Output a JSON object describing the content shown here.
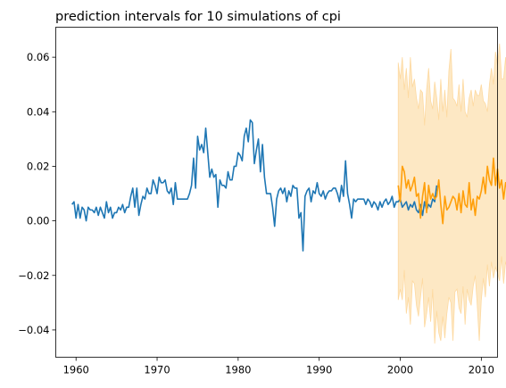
{
  "chart_data": {
    "type": "line",
    "title": "prediction intervals for 10 simulations of cpi",
    "xlabel": "",
    "ylabel": "",
    "xlim": [
      1957.5,
      2012.0
    ],
    "ylim": [
      -0.05,
      0.071
    ],
    "x_ticks": [
      1960,
      1970,
      1980,
      1990,
      2000,
      2010
    ],
    "y_ticks": [
      -0.04,
      -0.02,
      0.0,
      0.02,
      0.04,
      0.06
    ],
    "y_tick_labels": [
      "−0.04",
      "−0.02",
      "0.00",
      "0.02",
      "0.04",
      "0.06"
    ],
    "grid": false,
    "colors": {
      "observed": "#1f77b4",
      "forecast": "#ff9f0a",
      "band": "#fde8c4",
      "band_edge": "#fdd9a0"
    },
    "series": [
      {
        "key": "observed",
        "x_start": 1959.5,
        "step": 0.25,
        "values": [
          0.006,
          0.007,
          0.001,
          0.006,
          0.001,
          0.005,
          0.004,
          0.0,
          0.005,
          0.004,
          0.004,
          0.003,
          0.005,
          0.002,
          0.005,
          0.003,
          0.001,
          0.007,
          0.003,
          0.005,
          0.001,
          0.003,
          0.003,
          0.005,
          0.004,
          0.006,
          0.003,
          0.005,
          0.005,
          0.009,
          0.012,
          0.005,
          0.012,
          0.002,
          0.006,
          0.009,
          0.008,
          0.012,
          0.01,
          0.01,
          0.015,
          0.013,
          0.01,
          0.016,
          0.014,
          0.014,
          0.015,
          0.011,
          0.01,
          0.012,
          0.006,
          0.014,
          0.008,
          0.008,
          0.008,
          0.008,
          0.008,
          0.008,
          0.01,
          0.013,
          0.023,
          0.012,
          0.031,
          0.026,
          0.028,
          0.025,
          0.034,
          0.025,
          0.016,
          0.019,
          0.016,
          0.017,
          0.005,
          0.015,
          0.013,
          0.013,
          0.012,
          0.018,
          0.015,
          0.015,
          0.02,
          0.02,
          0.025,
          0.024,
          0.022,
          0.031,
          0.034,
          0.029,
          0.037,
          0.036,
          0.021,
          0.026,
          0.03,
          0.018,
          0.028,
          0.016,
          0.01,
          0.01,
          0.01,
          0.005,
          -0.002,
          0.008,
          0.011,
          0.012,
          0.01,
          0.012,
          0.007,
          0.011,
          0.009,
          0.013,
          0.012,
          0.012,
          0.001,
          0.003,
          -0.011,
          0.009,
          0.011,
          0.012,
          0.007,
          0.011,
          0.01,
          0.014,
          0.01,
          0.009,
          0.011,
          0.008,
          0.01,
          0.011,
          0.011,
          0.012,
          0.012,
          0.01,
          0.007,
          0.013,
          0.009,
          0.022,
          0.01,
          0.006,
          0.001,
          0.008,
          0.007,
          0.008,
          0.008,
          0.008,
          0.008,
          0.006,
          0.008,
          0.007,
          0.005,
          0.007,
          0.006,
          0.004,
          0.007,
          0.005,
          0.007,
          0.008,
          0.006,
          0.007,
          0.009,
          0.005,
          0.007,
          0.007,
          0.008,
          0.005,
          0.006,
          0.007,
          0.004,
          0.006,
          0.005,
          0.007,
          0.004,
          0.003,
          0.006,
          0.002,
          0.007,
          0.004,
          0.006,
          0.005,
          0.008,
          0.007,
          0.013
        ]
      },
      {
        "key": "forecast",
        "x_start": 1999.75,
        "step": 0.25,
        "values": [
          0.013,
          0.007,
          0.02,
          0.018,
          0.012,
          0.015,
          0.011,
          0.013,
          0.016,
          0.009,
          0.01,
          0.001,
          0.009,
          0.014,
          0.003,
          0.013,
          0.008,
          0.01,
          0.008,
          0.009,
          0.015,
          0.006,
          -0.001,
          0.009,
          0.004,
          0.005,
          0.007,
          0.009,
          0.008,
          0.004,
          0.01,
          0.003,
          0.011,
          0.006,
          0.005,
          0.014,
          0.004,
          0.008,
          0.002,
          0.009,
          0.008,
          0.011,
          0.016,
          0.01,
          0.02,
          0.015,
          0.013,
          0.023,
          0.013,
          0.019,
          0.012,
          0.015,
          0.008,
          0.014,
          0.011,
          0.011,
          0.017,
          0.008,
          0.009,
          0.018,
          0.015
        ]
      }
    ],
    "interval": {
      "x_start": 1999.75,
      "step": 0.25,
      "upper": [
        0.058,
        0.052,
        0.06,
        0.048,
        0.056,
        0.045,
        0.06,
        0.049,
        0.052,
        0.045,
        0.041,
        0.048,
        0.047,
        0.035,
        0.048,
        0.056,
        0.044,
        0.041,
        0.051,
        0.045,
        0.037,
        0.052,
        0.04,
        0.048,
        0.038,
        0.055,
        0.063,
        0.045,
        0.044,
        0.042,
        0.05,
        0.04,
        0.052,
        0.04,
        0.038,
        0.045,
        0.048,
        0.042,
        0.048,
        0.046,
        0.046,
        0.05,
        0.044,
        0.043,
        0.04,
        0.05,
        0.056,
        0.05,
        0.062,
        0.057,
        0.065,
        0.052,
        0.052,
        0.06,
        0.048,
        0.047,
        0.052,
        0.053,
        0.04,
        0.057,
        0.058
      ],
      "lower": [
        -0.029,
        -0.025,
        -0.029,
        -0.018,
        -0.034,
        -0.028,
        -0.038,
        -0.022,
        -0.023,
        -0.031,
        -0.035,
        -0.028,
        -0.021,
        -0.039,
        -0.034,
        -0.028,
        -0.037,
        -0.025,
        -0.045,
        -0.033,
        -0.041,
        -0.044,
        -0.035,
        -0.043,
        -0.034,
        -0.028,
        -0.03,
        -0.044,
        -0.026,
        -0.025,
        -0.032,
        -0.034,
        -0.024,
        -0.038,
        -0.025,
        -0.029,
        -0.031,
        -0.024,
        -0.02,
        -0.031,
        -0.044,
        -0.029,
        -0.021,
        -0.028,
        -0.016,
        -0.024,
        -0.015,
        -0.021,
        -0.017,
        -0.019,
        -0.022,
        -0.013,
        -0.023,
        -0.015,
        -0.018,
        -0.022,
        -0.02,
        -0.029,
        -0.025,
        -0.021,
        -0.022
      ]
    }
  }
}
